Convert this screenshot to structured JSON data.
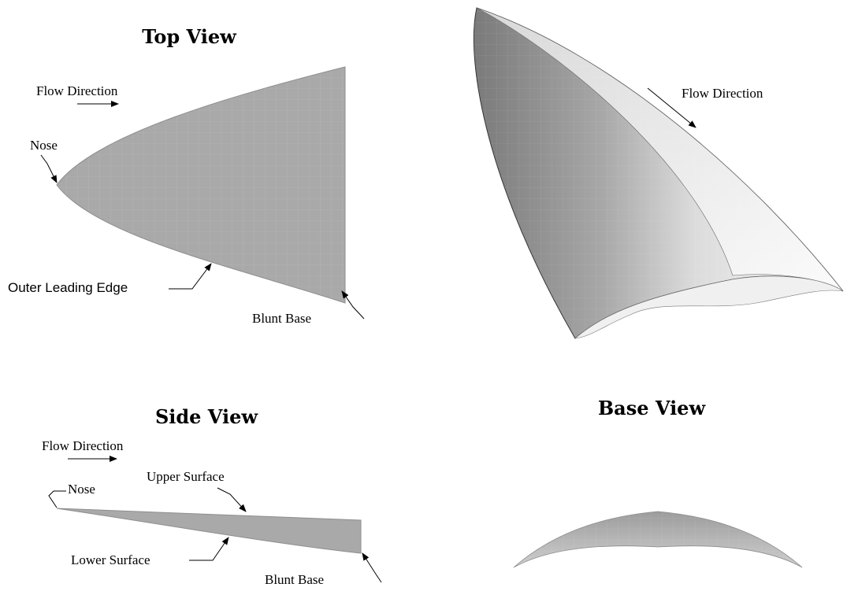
{
  "top_view": {
    "title": "Top View",
    "flow_direction": "Flow Direction",
    "nose": "Nose",
    "outer_leading_edge": "Outer Leading Edge",
    "blunt_base": "Blunt Base"
  },
  "iso_view": {
    "flow_direction": "Flow Direction"
  },
  "side_view": {
    "title": "Side View",
    "flow_direction": "Flow Direction",
    "nose": "Nose",
    "upper_surface": "Upper Surface",
    "lower_surface": "Lower Surface",
    "blunt_base": "Blunt Base"
  },
  "base_view": {
    "title": "Base View"
  },
  "colors": {
    "body_fill": "#a9a9a9",
    "body_light": "#f4f4f4",
    "body_dark": "#7a7a7a",
    "text": "#000000"
  }
}
